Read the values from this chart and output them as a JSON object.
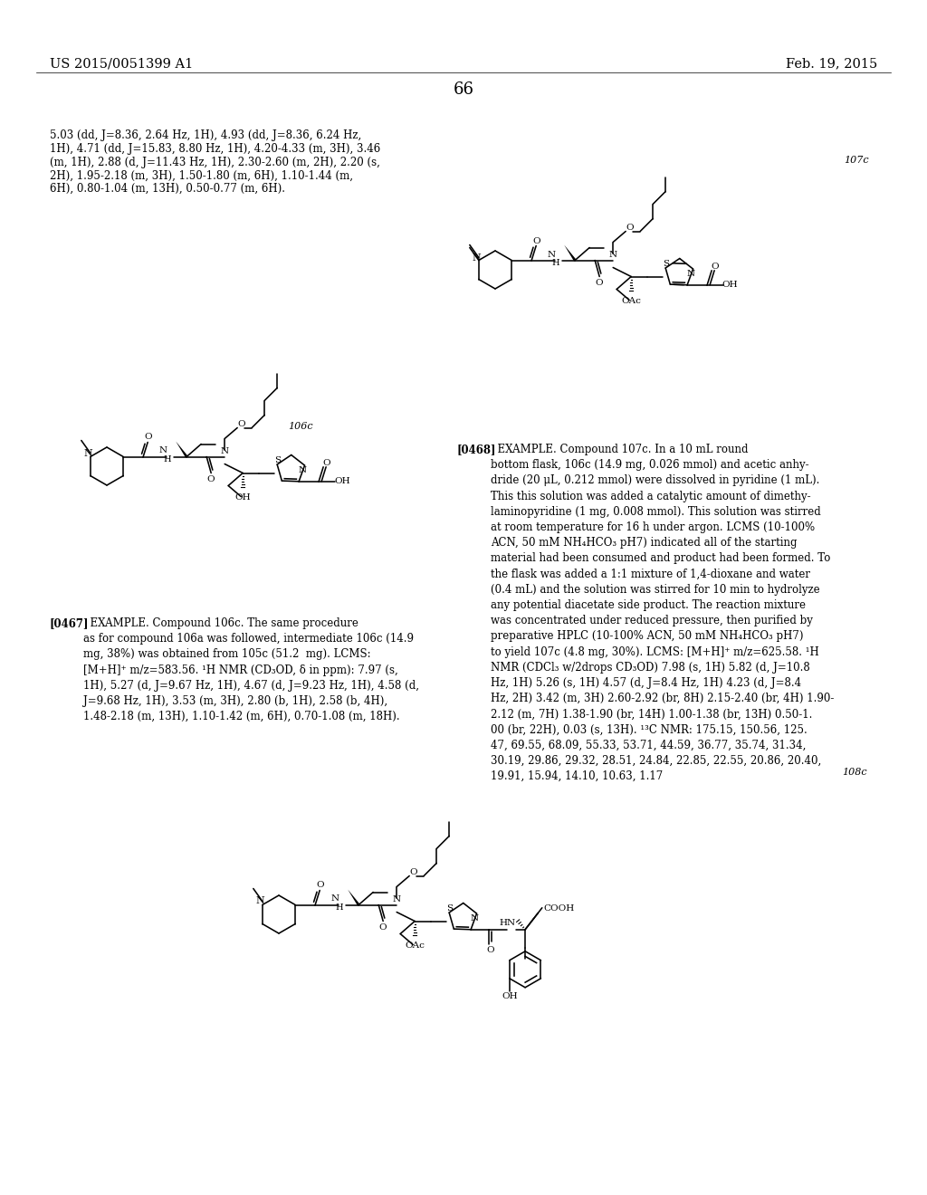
{
  "background_color": "#ffffff",
  "text_color": "#000000",
  "header_left": "US 2015/0051399 A1",
  "header_right": "Feb. 19, 2015",
  "page_number": "66",
  "top_text_lines": [
    "5.03 (dd, J=8.36, 2.64 Hz, 1H), 4.93 (dd, J=8.36, 6.24 Hz,",
    "1H), 4.71 (dd, J=15.83, 8.80 Hz, 1H), 4.20-4.33 (m, 3H), 3.46",
    "(m, 1H), 2.88 (d, J=11.43 Hz, 1H), 2.30-2.60 (m, 2H), 2.20 (s,",
    "2H), 1.95-2.18 (m, 3H), 1.50-1.80 (m, 6H), 1.10-1.44 (m,",
    "6H), 0.80-1.04 (m, 13H), 0.50-0.77 (m, 6H)."
  ],
  "para0467_bold": "[0467]",
  "para0467_text": "  EXAMPLE. Compound 106c. The same procedure\nas for compound 106a was followed, intermediate 106c (14.9\nmg, 38%) was obtained from 105c (51.2  mg). LCMS:\n[M+H]⁺ m/z=583.56. ¹H NMR (CD₃OD, δ in ppm): 7.97 (s,\n1H), 5.27 (d, J=9.67 Hz, 1H), 4.67 (d, J=9.23 Hz, 1H), 4.58 (d,\nJ=9.68 Hz, 1H), 3.53 (m, 3H), 2.80 (b, 1H), 2.58 (b, 4H),\n1.48-2.18 (m, 13H), 1.10-1.42 (m, 6H), 0.70-1.08 (m, 18H).",
  "para0468_bold": "[0468]",
  "para0468_text": "  EXAMPLE. Compound 107c. In a 10 mL round\nbottom flask, 106c (14.9 mg, 0.026 mmol) and acetic anhy-\ndride (20 μL, 0.212 mmol) were dissolved in pyridine (1 mL).\nThis this solution was added a catalytic amount of dimethy-\nlaminopyridine (1 mg, 0.008 mmol). This solution was stirred\nat room temperature for 16 h under argon. LCMS (10-100%\nACN, 50 mM NH₄HCO₃ pH7) indicated all of the starting\nmaterial had been consumed and product had been formed. To\nthe flask was added a 1:1 mixture of 1,4-dioxane and water\n(0.4 mL) and the solution was stirred for 10 min to hydrolyze\nany potential diacetate side product. The reaction mixture\nwas concentrated under reduced pressure, then purified by\npreparative HPLC (10-100% ACN, 50 mM NH₄HCO₃ pH7)\nto yield 107c (4.8 mg, 30%). LCMS: [M+H]⁺ m/z=625.58. ¹H\nNMR (CDCl₃ w/2drops CD₃OD) 7.98 (s, 1H) 5.82 (d, J=10.8\nHz, 1H) 5.26 (s, 1H) 4.57 (d, J=8.4 Hz, 1H) 4.23 (d, J=8.4\nHz, 2H) 3.42 (m, 3H) 2.60-2.92 (br, 8H) 2.15-2.40 (br, 4H) 1.90-\n2.12 (m, 7H) 1.38-1.90 (br, 14H) 1.00-1.38 (br, 13H) 0.50-1.\n00 (br, 22H), 0.03 (s, 13H). ¹³C NMR: 175.15, 150.56, 125.\n47, 69.55, 68.09, 55.33, 53.71, 44.59, 36.77, 35.74, 31.34,\n30.19, 29.86, 29.32, 28.51, 24.84, 22.85, 22.55, 20.86, 20.40,\n19.91, 15.94, 14.10, 10.63, 1.17"
}
